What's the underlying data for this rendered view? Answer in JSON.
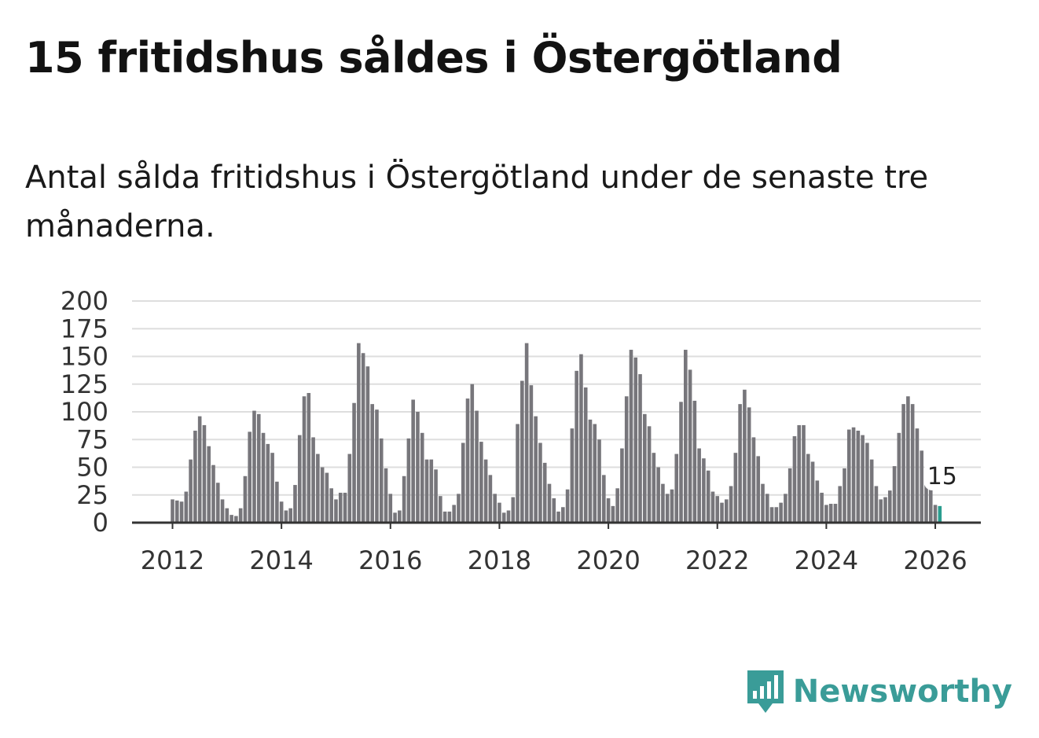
{
  "title": "15 fritidshus såldes i Östergötland",
  "subtitle": "Antal sålda fritidshus i Östergötland under de senaste tre månaderna.",
  "brand": {
    "name": "Newsworthy",
    "color": "#3a9c98",
    "icon": "newsworthy-logo-icon"
  },
  "colors": {
    "bars": "#77767b",
    "highlight": "#2a9d8f",
    "grid": "#dedede"
  },
  "chart_data": {
    "type": "bar",
    "start": "2012-01",
    "values": [
      21,
      20,
      19,
      28,
      57,
      83,
      96,
      88,
      69,
      52,
      36,
      21,
      13,
      7,
      6,
      13,
      42,
      82,
      101,
      98,
      81,
      71,
      63,
      37,
      19,
      11,
      13,
      34,
      79,
      114,
      117,
      77,
      62,
      50,
      45,
      31,
      21,
      27,
      27,
      62,
      108,
      162,
      153,
      141,
      107,
      102,
      76,
      49,
      26,
      9,
      11,
      42,
      76,
      111,
      100,
      81,
      57,
      57,
      48,
      24,
      10,
      10,
      16,
      26,
      72,
      112,
      125,
      101,
      73,
      57,
      43,
      26,
      18,
      9,
      11,
      23,
      89,
      128,
      162,
      124,
      96,
      72,
      54,
      35,
      22,
      10,
      14,
      30,
      85,
      137,
      152,
      122,
      93,
      89,
      75,
      43,
      22,
      15,
      31,
      67,
      114,
      156,
      149,
      134,
      98,
      87,
      63,
      50,
      35,
      26,
      30,
      62,
      109,
      156,
      138,
      110,
      67,
      58,
      47,
      28,
      24,
      18,
      21,
      33,
      63,
      107,
      120,
      104,
      77,
      60,
      35,
      26,
      14,
      14,
      18,
      26,
      49,
      78,
      88,
      88,
      62,
      55,
      38,
      27,
      16,
      17,
      17,
      33,
      49,
      84,
      86,
      83,
      79,
      72,
      57,
      33,
      21,
      23,
      29,
      51,
      81,
      107,
      114,
      107,
      85,
      65,
      50,
      40,
      16,
      15
    ],
    "xticks": [
      "2012",
      "2014",
      "2016",
      "2018",
      "2020",
      "2022",
      "2024",
      "2026"
    ],
    "yticks": [
      "0",
      "25",
      "50",
      "75",
      "100",
      "125",
      "150",
      "175",
      "200"
    ],
    "ylim": [
      0,
      200
    ],
    "annotation": "15",
    "grid": true
  }
}
